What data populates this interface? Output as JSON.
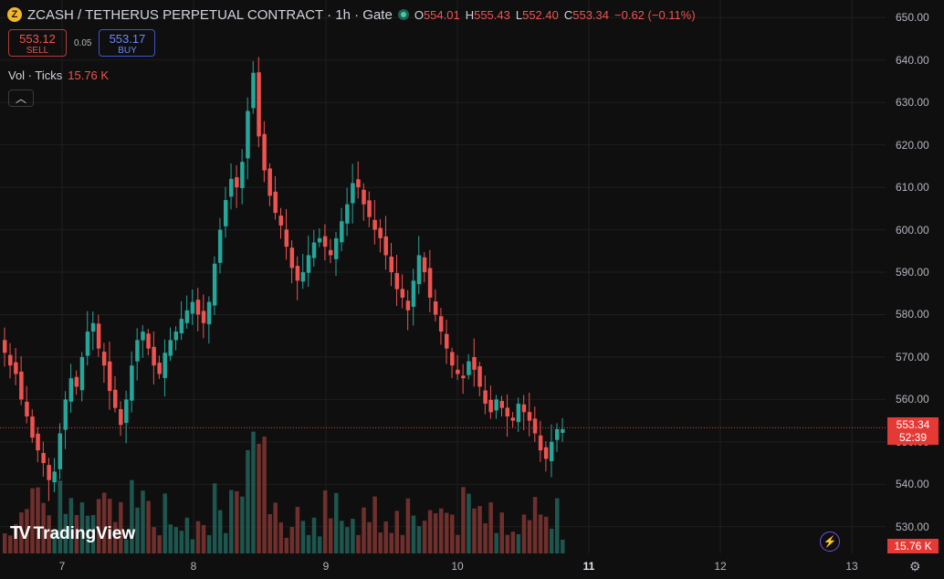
{
  "header": {
    "coin_symbol": "Z",
    "title": "ZCASH / TETHERUS PERPETUAL CONTRACT · 1h · Gate",
    "ohlc": [
      {
        "key": "O",
        "value": "554.01"
      },
      {
        "key": "H",
        "value": "555.43"
      },
      {
        "key": "L",
        "value": "552.40"
      },
      {
        "key": "C",
        "value": "553.34"
      },
      {
        "key": "",
        "value": "−0.62 (−0.11%)"
      }
    ]
  },
  "trade": {
    "sell_price": "553.12",
    "sell_label": "SELL",
    "spread": "0.05",
    "buy_price": "553.17",
    "buy_label": "BUY"
  },
  "volume_legend": {
    "label": "Vol · Ticks",
    "value": "15.76 K"
  },
  "collapse_icon": "chevron-up",
  "price_axis": [
    "650.00",
    "640.00",
    "630.00",
    "620.00",
    "610.00",
    "600.00",
    "590.00",
    "580.00",
    "570.00",
    "560.00",
    "550.00",
    "540.00",
    "530.00"
  ],
  "time_axis": [
    {
      "label": "7",
      "bold": false
    },
    {
      "label": "8",
      "bold": false
    },
    {
      "label": "9",
      "bold": false
    },
    {
      "label": "10",
      "bold": false
    },
    {
      "label": "11",
      "bold": true
    },
    {
      "label": "12",
      "bold": false
    },
    {
      "label": "13",
      "bold": false
    }
  ],
  "last_price": {
    "price": "553.34",
    "countdown": "52:39"
  },
  "volume_tag": "15.76 K",
  "brand": "TradingView",
  "colors": {
    "up": "#26a69a",
    "down": "#ef5350",
    "background": "#0f0f0f",
    "grid": "#1f1f1f"
  },
  "chart_data": {
    "type": "candlestick",
    "interval": "1h",
    "ylim": [
      525,
      652
    ],
    "series_up_color": "#26a69a",
    "series_down_color": "#ef5350",
    "last_price_line": 553.34,
    "volume_last": "15.76 K",
    "candles_approx_close": [
      571,
      568,
      566,
      560,
      556,
      551,
      548,
      545,
      541,
      543,
      552,
      560,
      565,
      563,
      570,
      576,
      578,
      572,
      568,
      562,
      558,
      554,
      560,
      568,
      574,
      576,
      572,
      568,
      566,
      571,
      574,
      576,
      579,
      581,
      583,
      580,
      578,
      583,
      592,
      600,
      607,
      612,
      610,
      616,
      628,
      637,
      622,
      614,
      608,
      604,
      601,
      596,
      591,
      588,
      590,
      594,
      597,
      598,
      596,
      594,
      598,
      602,
      606,
      611,
      610,
      606,
      603,
      600,
      598,
      594,
      590,
      586,
      584,
      581,
      588,
      594,
      590,
      584,
      580,
      576,
      572,
      568,
      566,
      565,
      569,
      567,
      563,
      559,
      557,
      560,
      558,
      556,
      555,
      559,
      557,
      555,
      552,
      548,
      546,
      550,
      553,
      553
    ]
  }
}
